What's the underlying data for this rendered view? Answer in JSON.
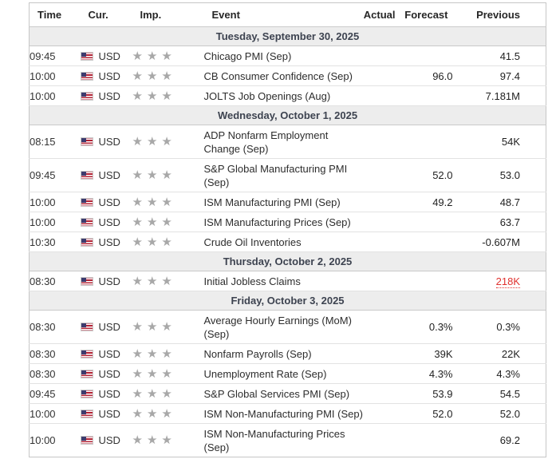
{
  "icons": {
    "star": "★"
  },
  "colors": {
    "highlight_red": "#e0312e",
    "star_gray": "#a8a8a8",
    "day_row_bg": "#ededed",
    "day_row_text": "#3d4350",
    "border_outer": "#c6c6c6",
    "border_row": "#e2e2e2"
  },
  "table": {
    "columns": [
      "Time",
      "Cur.",
      "Imp.",
      "Event",
      "Actual",
      "Forecast",
      "Previous"
    ],
    "days": [
      {
        "date": "Tuesday, September 30, 2025",
        "events": [
          {
            "time": "09:45",
            "currency": "USD",
            "importance": 3,
            "event": "Chicago PMI (Sep)",
            "actual": "",
            "forecast": "",
            "previous": "41.5"
          },
          {
            "time": "10:00",
            "currency": "USD",
            "importance": 3,
            "event": "CB Consumer Confidence (Sep)",
            "actual": "",
            "forecast": "96.0",
            "previous": "97.4"
          },
          {
            "time": "10:00",
            "currency": "USD",
            "importance": 3,
            "event": "JOLTS Job Openings (Aug)",
            "actual": "",
            "forecast": "",
            "previous": "7.181M"
          }
        ]
      },
      {
        "date": "Wednesday, October 1, 2025",
        "events": [
          {
            "time": "08:15",
            "currency": "USD",
            "importance": 3,
            "event": "ADP Nonfarm Employment Change (Sep)",
            "actual": "",
            "forecast": "",
            "previous": "54K"
          },
          {
            "time": "09:45",
            "currency": "USD",
            "importance": 3,
            "event": "S&P Global Manufacturing PMI (Sep)",
            "actual": "",
            "forecast": "52.0",
            "previous": "53.0"
          },
          {
            "time": "10:00",
            "currency": "USD",
            "importance": 3,
            "event": "ISM Manufacturing PMI (Sep)",
            "actual": "",
            "forecast": "49.2",
            "previous": "48.7"
          },
          {
            "time": "10:00",
            "currency": "USD",
            "importance": 3,
            "event": "ISM Manufacturing Prices (Sep)",
            "actual": "",
            "forecast": "",
            "previous": "63.7"
          },
          {
            "time": "10:30",
            "currency": "USD",
            "importance": 3,
            "event": "Crude Oil Inventories",
            "actual": "",
            "forecast": "",
            "previous": "-0.607M"
          }
        ]
      },
      {
        "date": "Thursday, October 2, 2025",
        "events": [
          {
            "time": "08:30",
            "currency": "USD",
            "importance": 3,
            "event": "Initial Jobless Claims",
            "actual": "",
            "forecast": "",
            "previous": "218K",
            "previous_style": "red-dotted"
          }
        ]
      },
      {
        "date": "Friday, October 3, 2025",
        "events": [
          {
            "time": "08:30",
            "currency": "USD",
            "importance": 3,
            "event": "Average Hourly Earnings (MoM) (Sep)",
            "actual": "",
            "forecast": "0.3%",
            "previous": "0.3%"
          },
          {
            "time": "08:30",
            "currency": "USD",
            "importance": 3,
            "event": "Nonfarm Payrolls (Sep)",
            "actual": "",
            "forecast": "39K",
            "previous": "22K"
          },
          {
            "time": "08:30",
            "currency": "USD",
            "importance": 3,
            "event": "Unemployment Rate (Sep)",
            "actual": "",
            "forecast": "4.3%",
            "previous": "4.3%"
          },
          {
            "time": "09:45",
            "currency": "USD",
            "importance": 3,
            "event": "S&P Global Services PMI (Sep)",
            "actual": "",
            "forecast": "53.9",
            "previous": "54.5"
          },
          {
            "time": "10:00",
            "currency": "USD",
            "importance": 3,
            "event": "ISM Non-Manufacturing PMI (Sep)",
            "actual": "",
            "forecast": "52.0",
            "previous": "52.0"
          },
          {
            "time": "10:00",
            "currency": "USD",
            "importance": 3,
            "event": "ISM Non-Manufacturing Prices (Sep)",
            "actual": "",
            "forecast": "",
            "previous": "69.2"
          }
        ]
      }
    ]
  }
}
